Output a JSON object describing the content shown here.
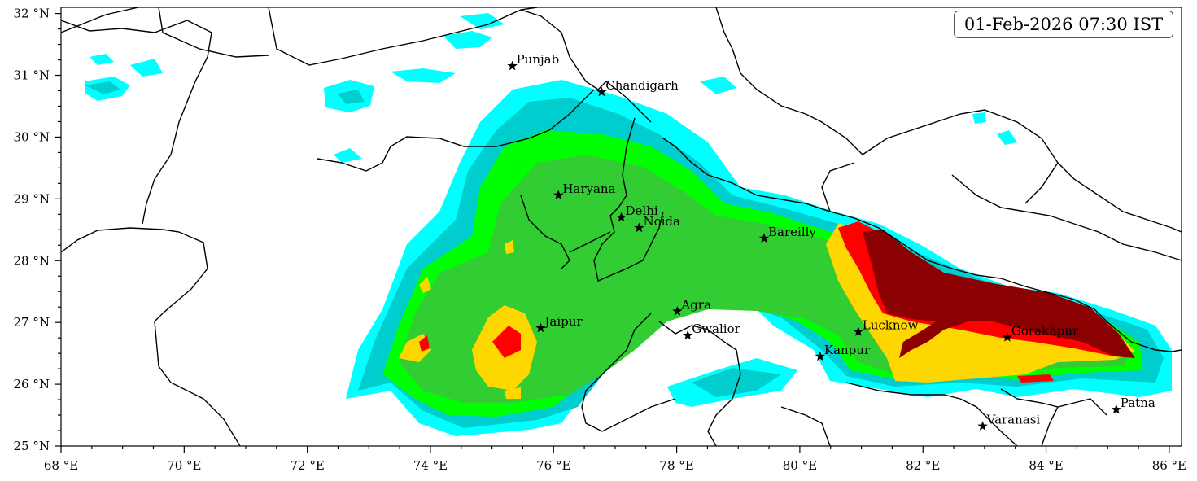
{
  "timestamp": "01-Feb-2026 07:30 IST",
  "colors": {
    "level1": "#00ffff",
    "level2": "#00cdcd",
    "level3": "#00ff00",
    "level4": "#32cd32",
    "level5": "#ffd700",
    "level6": "#ff0000",
    "level7": "#8b0000",
    "border": "#000000"
  },
  "axes": {
    "lon_ticks": [
      "68 °E",
      "70 °E",
      "72 °E",
      "74 °E",
      "76 °E",
      "78 °E",
      "80 °E",
      "82 °E",
      "84 °E",
      "86 °E"
    ],
    "lat_ticks": [
      "32 °N",
      "31 °N",
      "30 °N",
      "29 °N",
      "28 °N",
      "27 °N",
      "26 °N",
      "25 °N"
    ],
    "lon_range": [
      68,
      86.2
    ],
    "lat_range": [
      25,
      32.1
    ]
  },
  "cities": [
    {
      "name": "Punjab",
      "lon": 75.33,
      "lat": 31.15
    },
    {
      "name": "Chandigarh",
      "lon": 76.78,
      "lat": 30.73
    },
    {
      "name": "Haryana",
      "lon": 76.08,
      "lat": 29.06
    },
    {
      "name": "Delhi",
      "lon": 77.1,
      "lat": 28.7
    },
    {
      "name": "Noida",
      "lon": 77.39,
      "lat": 28.53
    },
    {
      "name": "Bareilly",
      "lon": 79.42,
      "lat": 28.36
    },
    {
      "name": "Agra",
      "lon": 78.01,
      "lat": 27.18
    },
    {
      "name": "Jaipur",
      "lon": 75.79,
      "lat": 26.91
    },
    {
      "name": "Gwalior",
      "lon": 78.18,
      "lat": 26.79
    },
    {
      "name": "Lucknow",
      "lon": 80.95,
      "lat": 26.85
    },
    {
      "name": "Gorakhpur",
      "lon": 83.37,
      "lat": 26.76
    },
    {
      "name": "Kanpur",
      "lon": 80.33,
      "lat": 26.45
    },
    {
      "name": "Varanasi",
      "lon": 82.97,
      "lat": 25.32
    },
    {
      "name": "Patna",
      "lon": 85.14,
      "lat": 25.59
    }
  ]
}
